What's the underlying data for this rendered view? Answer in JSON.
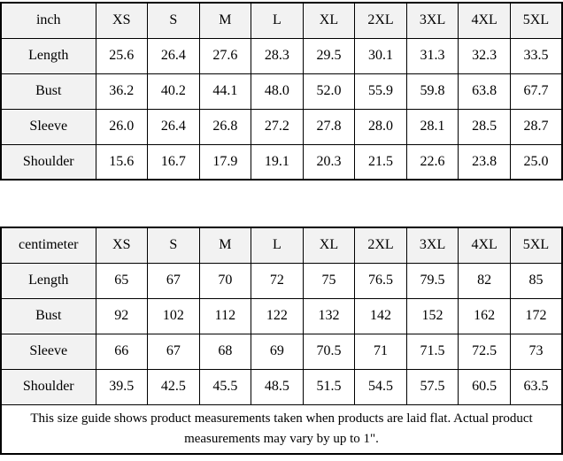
{
  "colors": {
    "header_bg": "#f2f2f2",
    "border": "#000000",
    "cell_bg": "#ffffff",
    "text": "#000000"
  },
  "tables": [
    {
      "unit_label": "inch",
      "sizes": [
        "XS",
        "S",
        "M",
        "L",
        "XL",
        "2XL",
        "3XL",
        "4XL",
        "5XL"
      ],
      "rows": [
        {
          "label": "Length",
          "values": [
            "25.6",
            "26.4",
            "27.6",
            "28.3",
            "29.5",
            "30.1",
            "31.3",
            "32.3",
            "33.5"
          ]
        },
        {
          "label": "Bust",
          "values": [
            "36.2",
            "40.2",
            "44.1",
            "48.0",
            "52.0",
            "55.9",
            "59.8",
            "63.8",
            "67.7"
          ]
        },
        {
          "label": "Sleeve",
          "values": [
            "26.0",
            "26.4",
            "26.8",
            "27.2",
            "27.8",
            "28.0",
            "28.1",
            "28.5",
            "28.7"
          ]
        },
        {
          "label": "Shoulder",
          "values": [
            "15.6",
            "16.7",
            "17.9",
            "19.1",
            "20.3",
            "21.5",
            "22.6",
            "23.8",
            "25.0"
          ]
        }
      ]
    },
    {
      "unit_label": "centimeter",
      "sizes": [
        "XS",
        "S",
        "M",
        "L",
        "XL",
        "2XL",
        "3XL",
        "4XL",
        "5XL"
      ],
      "rows": [
        {
          "label": "Length",
          "values": [
            "65",
            "67",
            "70",
            "72",
            "75",
            "76.5",
            "79.5",
            "82",
            "85"
          ]
        },
        {
          "label": "Bust",
          "values": [
            "92",
            "102",
            "112",
            "122",
            "132",
            "142",
            "152",
            "162",
            "172"
          ]
        },
        {
          "label": "Sleeve",
          "values": [
            "66",
            "67",
            "68",
            "69",
            "70.5",
            "71",
            "71.5",
            "72.5",
            "73"
          ]
        },
        {
          "label": "Shoulder",
          "values": [
            "39.5",
            "42.5",
            "45.5",
            "48.5",
            "51.5",
            "54.5",
            "57.5",
            "60.5",
            "63.5"
          ]
        }
      ]
    }
  ],
  "footer_note": "This size guide shows product measurements taken when products are laid flat. Actual product measurements may vary by up to 1\"."
}
